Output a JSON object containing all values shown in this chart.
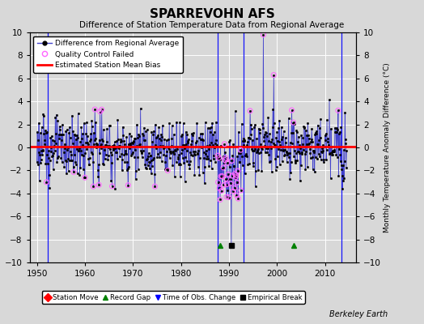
{
  "title": "SPARREVOHN AFS",
  "subtitle": "Difference of Station Temperature Data from Regional Average",
  "ylabel_right": "Monthly Temperature Anomaly Difference (°C)",
  "xlim": [
    1948.5,
    2016.5
  ],
  "ylim": [
    -10,
    10
  ],
  "yticks": [
    -10,
    -8,
    -6,
    -4,
    -2,
    0,
    2,
    4,
    6,
    8,
    10
  ],
  "xticks": [
    1950,
    1960,
    1970,
    1980,
    1990,
    2000,
    2010
  ],
  "mean_bias": 0.1,
  "background_color": "#d8d8d8",
  "plot_bg_color": "#d8d8d8",
  "grid_color": "#bbbbbb",
  "line_color": "#4444cc",
  "marker_color": "black",
  "bias_line_color": "red",
  "qc_failed_color": "#ff66ff",
  "station_move_color": "red",
  "record_gap_color": "green",
  "tobs_color": "blue",
  "empirical_break_color": "black",
  "watermark": "Berkeley Earth",
  "vertical_lines": [
    1952.3,
    1987.7,
    1993.0,
    2013.5
  ],
  "vertical_line_colors": [
    "blue",
    "blue",
    "blue",
    "blue"
  ],
  "station_moves": [],
  "record_gaps": [
    1988.2,
    2003.5
  ],
  "tobs_changes": [],
  "empirical_breaks": [
    1990.5
  ],
  "bottom_legend": [
    {
      "label": "Station Move",
      "color": "red",
      "marker": "D"
    },
    {
      "label": "Record Gap",
      "color": "green",
      "marker": "^"
    },
    {
      "label": "Time of Obs. Change",
      "color": "blue",
      "marker": "v"
    },
    {
      "label": "Empirical Break",
      "color": "black",
      "marker": "s"
    }
  ],
  "event_y": -8.5
}
